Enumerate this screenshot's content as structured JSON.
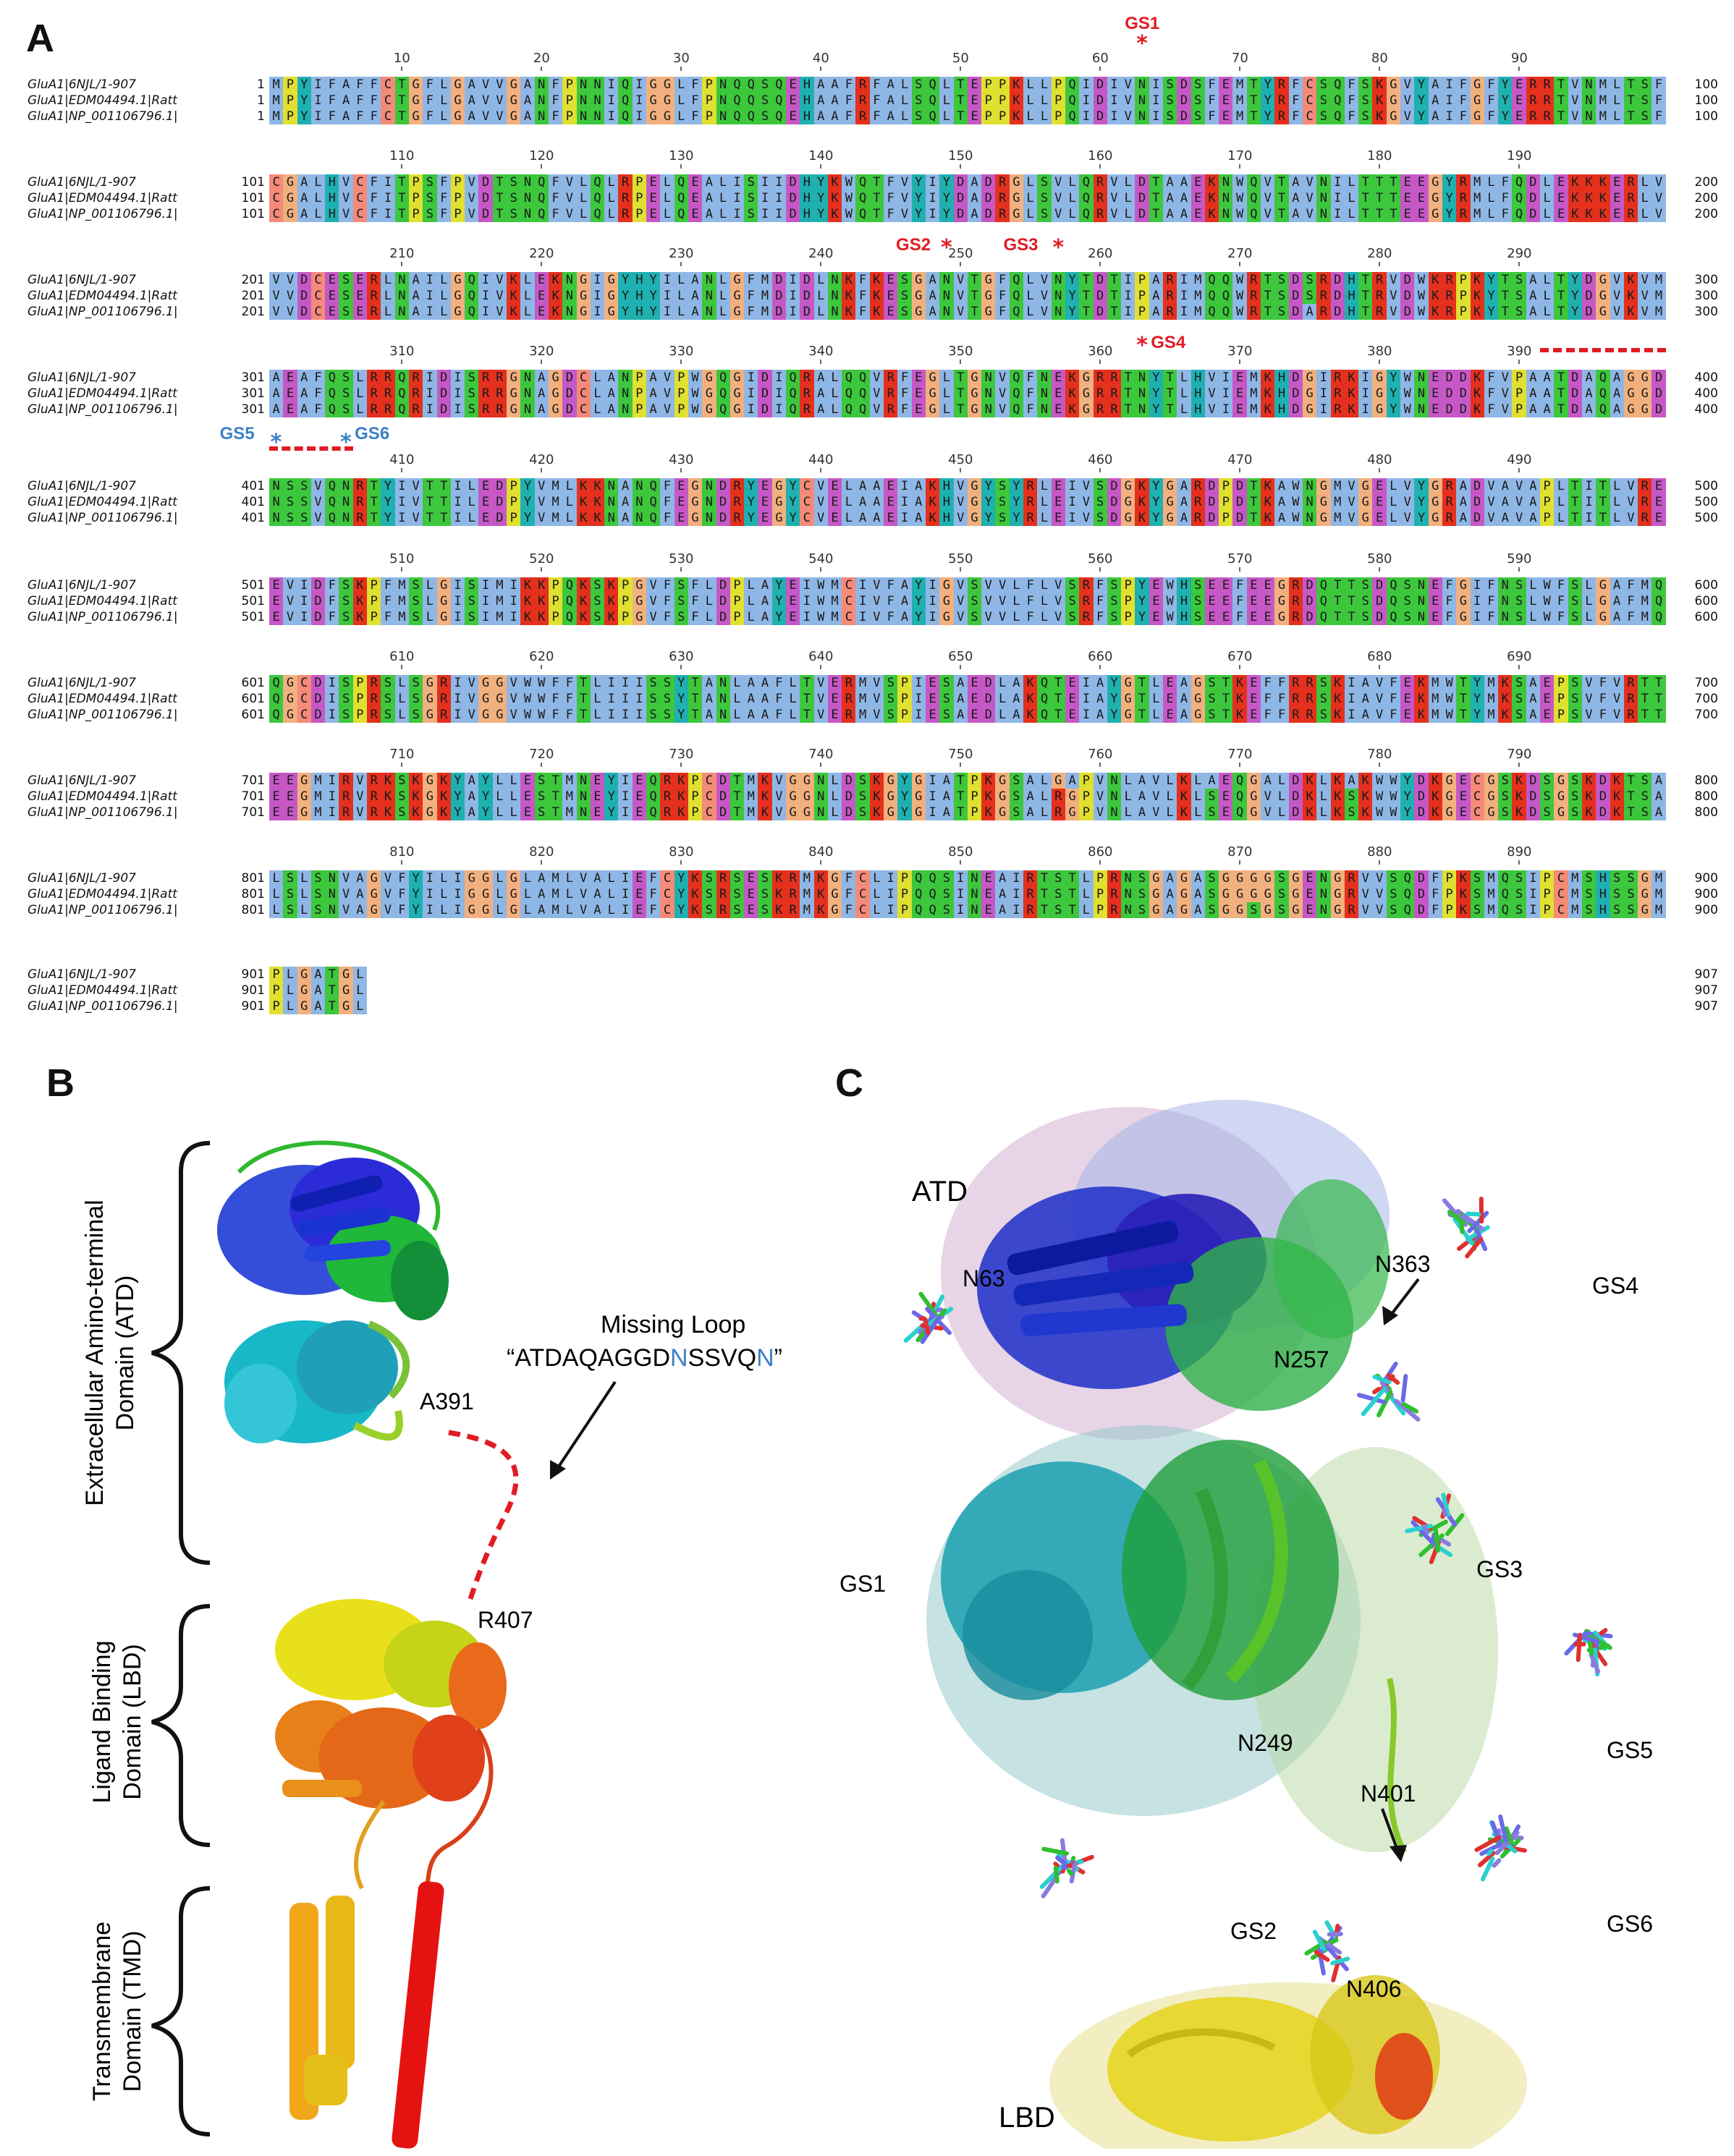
{
  "panels": {
    "a": "A",
    "b": "B",
    "c": "C"
  },
  "colors": {
    "hydrophobic": "#8fb7e6",
    "glycine": "#f2b07e",
    "proline": "#e0e030",
    "polar": "#3cc73c",
    "basic": "#e4301d",
    "acidic": "#c658c6",
    "cysteine": "#f48a78",
    "aromatic": "#1fb0b0",
    "gap": "#ffffff",
    "site_red": "#e11b22",
    "site_blue": "#3a7fc8"
  },
  "alignment": {
    "sequence_names": [
      "GluA1|6NJL/1-907",
      "GluA1|EDM04494.1|Ratt",
      "GluA1|NP_001106796.1|"
    ],
    "blocks": [
      {
        "start": 1,
        "end": 100,
        "ruler": [
          "10",
          "20",
          "30",
          "40",
          "50",
          "60",
          "70",
          "80",
          "90"
        ],
        "rows": [
          "MPYIFAFFCTGFLGAVVGANFPNNIQIGGLFPNQQSQEHAAFRFALSQLTEPPKLLPQIDIVNISDSFEMTYRFCSQFSKGVYAIFGFYERRTVNMLTSF",
          "MPYIFAFFCTGFLGAVVGANFPNNIQIGGLFPNQQSQEHAAFRFALSQLTEPPKLLPQIDIVNISDSFEMTYRFCSQFSKGVYAIFGFYERRTVNMLTSF",
          "MPYIFAFFCTGFLGAVVGANFPNNIQIGGLFPNQQSQEHAAFRFALSQLTEPPKLLPQIDIVNISDSFEMTYRFCSQFSKGVYAIFGFYERRTVNMLTSF"
        ]
      },
      {
        "start": 101,
        "end": 200,
        "ruler": [
          "110",
          "120",
          "130",
          "140",
          "150",
          "160",
          "170",
          "180",
          "190"
        ],
        "rows": [
          "CGALHVCFITPSFPVDTSNQFVLQLRPELQEALISIIDHYKWQTFVYIYDADRGLSVLQRVLDTAAEKNWQVTAVNILTTTEEGYRMLFQDLEKKKERLV",
          "CGALHVCFITPSFPVDTSNQFVLQLRPELQEALISIIDHYKWQTFVYIYDADRGLSVLQRVLDTAAEKNWQVTAVNILTTTEEGYRMLFQDLEKKKERLV",
          "CGALHVCFITPSFPVDTSNQFVLQLRPELQEALISIIDHYKWQTFVYIYDADRGLSVLQRVLDTAAEKNWQVTAVNILTTTEEGYRMLFQDLEKKKERLV"
        ]
      },
      {
        "start": 201,
        "end": 300,
        "ruler": [
          "210",
          "220",
          "230",
          "240",
          "250",
          "260",
          "270",
          "280",
          "290"
        ],
        "rows": [
          "VVDCESERLNAILGQIVKLEKNGIGYHYILANLGFMDIDLNKFKESGANVTGFQLVNYTDTIPARIMQQWRTSDSRDHTRVDWKRPKYTSALTYDGVKVM",
          "VVDCESERLNAILGQIVKLEKNGIGYHYILANLGFMDIDLNKFKESGANVTGFQLVNYTDTIPARIMQQWRTSDSRDHTRVDWKRPKYTSALTYDGVKVM",
          "VVDCESERLNAILGQIVKLEKNGIGYHYILANLGFMDIDLNKFKESGANVTGFQLVNYTDTIPARIMQQWRTSDARDHTRVDWKRPKYTSALTYDGVKVM"
        ]
      },
      {
        "start": 301,
        "end": 400,
        "ruler": [
          "310",
          "320",
          "330",
          "340",
          "350",
          "360",
          "370",
          "380",
          "390"
        ],
        "rows": [
          "AEAFQSLRRQRIDISRRGNAGDCLANPAVPWGQGIDIQRALQQVRFEGLTGNVQFNEKGRRTNYTLHVIEMKHDGIRKIGYWNEDDKFVPAATDAQAGGD",
          "AEAFQSLRRQRIDISRRGNAGDCLANPAVPWGQGIDIQRALQQVRFEGLTGNVQFNEKGRRTNYTLHVIEMKHDGIRKIGYWNEDDKFVPAATDAQAGGD",
          "AEAFQSLRRQRIDISRRGNAGDCLANPAVPWGQGIDIQRALQQVRFEGLTGNVQFNEKGRRTNYTLHVIEMKHDGIRKIGYWNEDDKFVPAATDAQAGGD"
        ]
      },
      {
        "start": 401,
        "end": 500,
        "ruler": [
          "410",
          "420",
          "430",
          "440",
          "450",
          "460",
          "470",
          "480",
          "490"
        ],
        "rows": [
          "NSSVQNRTYIVTTILEDPYVMLKKNANQFEGNDRYEGYCVELAAEIAKHVGYSYRLEIVSDGKYGARDPDTKAWNGMVGELVYGRADVAVAPLTITLVRE",
          "NSSVQNRTYIVTTILEDPYVMLKKNANQFEGNDRYEGYCVELAAEIAKHVGYSYRLEIVSDGKYGARDPDTKAWNGMVGELVYGRADVAVAPLTITLVRE",
          "NSSVQNRTYIVTTILEDPYVMLKKNANQFEGNDRYEGYCVELAAEIAKHVGYSYRLEIVSDGKYGARDPDTKAWNGMVGELVYGRADVAVAPLTITLVRE"
        ]
      },
      {
        "start": 501,
        "end": 600,
        "ruler": [
          "510",
          "520",
          "530",
          "540",
          "550",
          "560",
          "570",
          "580",
          "590"
        ],
        "rows": [
          "EVIDFSKPFMSLGISIMIKKPQKSKPGVFSFLDPLAYEIWMCIVFAYIGVSVVLFLVSRFSPYEWHSEEFEEGRDQTTSDQSNEFGIFNSLWFSLGAFMQ",
          "EVIDFSKPFMSLGISIMIKKPQKSKPGVFSFLDPLAYEIWMCIVFAYIGVSVVLFLVSRFSPYEWHSEEFEEGRDQTTSDQSNEFGIFNSLWFSLGAFMQ",
          "EVIDFSKPFMSLGISIMIKKPQKSKPGVFSFLDPLAYEIWMCIVFAYIGVSVVLFLVSRFSPYEWHSEEFEEGRDQTTSDQSNEFGIFNSLWFSLGAFMQ"
        ]
      },
      {
        "start": 601,
        "end": 700,
        "ruler": [
          "610",
          "620",
          "630",
          "640",
          "650",
          "660",
          "670",
          "680",
          "690"
        ],
        "rows": [
          "QGCDISPRSLSGRIVGGVWWFFTLIIISSYTANLAAFLTVERMVSPIESAEDLAKQTEIAYGTLEAGSTKEFFRRSKIAVFEKMWTYMKSAEPSVFVRTT",
          "QGCDISPRSLSGRIVGGVWWFFTLIIISSYTANLAAFLTVERMVSPIESAEDLAKQTEIAYGTLEAGSTKEFFRRSKIAVFEKMWTYMKSAEPSVFVRTT",
          "QGCDISPRSLSGRIVGGVWWFFTLIIISSYTANLAAFLTVERMVSPIESAEDLAKQTEIAYGTLEAGSTKEFFRRSKIAVFEKMWTYMKSAEPSVFVRTT"
        ]
      },
      {
        "start": 701,
        "end": 800,
        "ruler": [
          "710",
          "720",
          "730",
          "740",
          "750",
          "760",
          "770",
          "780",
          "790"
        ],
        "rows": [
          "EEGMIRVRKSKGKYAYLLESTMNEYIEQRKPCDTMKVGGNLDSKGYGIATPKGSALGAPVNLAVLKLAEQGALDKLKAKWWYDKGECGSKDSGSKDKTSA",
          "EEGMIRVRKSKGKYAYLLESTMNEYIEQRKPCDTMKVGGNLDSKGYGIATPKGSALRGPVNLAVLKLSEQGVLDKLKSKWWYDKGECGSKDSGSKDKTSA",
          "EEGMIRVRKSKGKYAYLLESTMNEYIEQRKPCDTMKVGGNLDSKGYGIATPKGSALRGPVNLAVLKLSEQGVLDKLKSKWWYDKGECGSKDSGSKDKTSA"
        ]
      },
      {
        "start": 801,
        "end": 900,
        "ruler": [
          "810",
          "820",
          "830",
          "840",
          "850",
          "860",
          "870",
          "880",
          "890"
        ],
        "rows": [
          "LSLSNVAGVFYILIGGLGLAMLVALIEFCYKSRSESKRMKGFCLIPQQSINEAIRTSTLPRNSGAGASGGGGSGENGRVVSQDFPKSMQSIPCMSHSSGM",
          "LSLSNVAGVFYILIGGLGLAMLVALIEFCYKSRSESKRMKGFCLIPQQSINEAIRTSTLPRNSGAGASGGGGSGENGRVVSQDFPKSMQSIPCMSHSSGM",
          "LSLSNVAGVFYILIGGLGLAMLVALIEFCYKSRSESKRMKGFCLIPQQSINEAIRTSTLPRNSGAGASGGSGSGENGRVVSQDFPKSMQSIPCMSHSSGM"
        ]
      },
      {
        "start": 901,
        "end": 907,
        "ruler": [],
        "rows": [
          "PLGATGL",
          "PLGATGL",
          "PLGATGL"
        ]
      }
    ],
    "sites": [
      {
        "label": "GS1",
        "color": "red",
        "block": 0,
        "position": 63
      },
      {
        "label": "GS2",
        "color": "red",
        "block": 2,
        "position": 249
      },
      {
        "label": "GS3",
        "color": "red",
        "block": 2,
        "position": 257
      },
      {
        "label": "GS4",
        "color": "red",
        "block": 3,
        "position": 363
      },
      {
        "label": "GS5",
        "color": "blue",
        "block": 4,
        "position": 401
      },
      {
        "label": "GS6",
        "color": "blue",
        "block": 4,
        "position": 406
      }
    ],
    "missing_loop_spans": [
      {
        "block": 3,
        "from": 392,
        "to": 400
      },
      {
        "block": 4,
        "from": 401,
        "to": 406
      }
    ]
  },
  "panel_b": {
    "domains": [
      {
        "name": "Extracellular Amino-terminal Domain (ATD)"
      },
      {
        "name": "Ligand Binding Domain (LBD)"
      },
      {
        "name": "Transmembrane Domain (TMD)"
      }
    ],
    "domain_lines": [
      [
        "Extracellular Amino-terminal",
        "Domain (ATD)"
      ],
      [
        "Ligand Binding",
        "Domain (LBD)"
      ],
      [
        "Transmembrane",
        "Domain (TMD)"
      ]
    ],
    "residue_a391": "A391",
    "residue_r407": "R407",
    "missing_loop_title": "Missing Loop",
    "missing_loop_prefix": "“ATDAQAGGD",
    "missing_loop_n1": "N",
    "missing_loop_mid": "SSVQ",
    "missing_loop_n2": "N",
    "missing_loop_suffix": "”"
  },
  "panel_c": {
    "atd_label": "ATD",
    "lbd_label": "LBD",
    "residues": [
      "N63",
      "N363",
      "N257",
      "N249",
      "N401",
      "N406"
    ],
    "glycans": [
      "GS1",
      "GS2",
      "GS3",
      "GS4",
      "GS5",
      "GS6"
    ]
  }
}
